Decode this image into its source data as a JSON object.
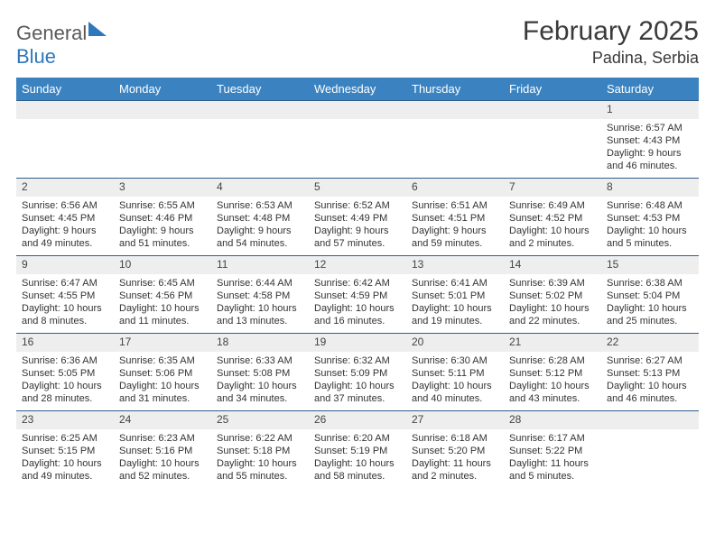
{
  "logo": {
    "general": "General",
    "blue": "Blue"
  },
  "title": {
    "month": "February 2025",
    "location": "Padina, Serbia"
  },
  "palette": {
    "header_bg": "#3b83c0",
    "header_text": "#ffffff",
    "daynum_bg": "#eeeeee",
    "rule_color": "#2f5e8a",
    "body_text": "#333333",
    "logo_gray": "#5a5a5a",
    "logo_blue": "#2f77bb"
  },
  "typography": {
    "title_fontsize": 30,
    "location_fontsize": 18,
    "dayhead_fontsize": 13,
    "cell_fontsize": 11
  },
  "dayheads": [
    "Sunday",
    "Monday",
    "Tuesday",
    "Wednesday",
    "Thursday",
    "Friday",
    "Saturday"
  ],
  "weeks": [
    [
      {
        "n": "",
        "sr": "",
        "ss": "",
        "dl": ""
      },
      {
        "n": "",
        "sr": "",
        "ss": "",
        "dl": ""
      },
      {
        "n": "",
        "sr": "",
        "ss": "",
        "dl": ""
      },
      {
        "n": "",
        "sr": "",
        "ss": "",
        "dl": ""
      },
      {
        "n": "",
        "sr": "",
        "ss": "",
        "dl": ""
      },
      {
        "n": "",
        "sr": "",
        "ss": "",
        "dl": ""
      },
      {
        "n": "1",
        "sr": "Sunrise: 6:57 AM",
        "ss": "Sunset: 4:43 PM",
        "dl": "Daylight: 9 hours and 46 minutes."
      }
    ],
    [
      {
        "n": "2",
        "sr": "Sunrise: 6:56 AM",
        "ss": "Sunset: 4:45 PM",
        "dl": "Daylight: 9 hours and 49 minutes."
      },
      {
        "n": "3",
        "sr": "Sunrise: 6:55 AM",
        "ss": "Sunset: 4:46 PM",
        "dl": "Daylight: 9 hours and 51 minutes."
      },
      {
        "n": "4",
        "sr": "Sunrise: 6:53 AM",
        "ss": "Sunset: 4:48 PM",
        "dl": "Daylight: 9 hours and 54 minutes."
      },
      {
        "n": "5",
        "sr": "Sunrise: 6:52 AM",
        "ss": "Sunset: 4:49 PM",
        "dl": "Daylight: 9 hours and 57 minutes."
      },
      {
        "n": "6",
        "sr": "Sunrise: 6:51 AM",
        "ss": "Sunset: 4:51 PM",
        "dl": "Daylight: 9 hours and 59 minutes."
      },
      {
        "n": "7",
        "sr": "Sunrise: 6:49 AM",
        "ss": "Sunset: 4:52 PM",
        "dl": "Daylight: 10 hours and 2 minutes."
      },
      {
        "n": "8",
        "sr": "Sunrise: 6:48 AM",
        "ss": "Sunset: 4:53 PM",
        "dl": "Daylight: 10 hours and 5 minutes."
      }
    ],
    [
      {
        "n": "9",
        "sr": "Sunrise: 6:47 AM",
        "ss": "Sunset: 4:55 PM",
        "dl": "Daylight: 10 hours and 8 minutes."
      },
      {
        "n": "10",
        "sr": "Sunrise: 6:45 AM",
        "ss": "Sunset: 4:56 PM",
        "dl": "Daylight: 10 hours and 11 minutes."
      },
      {
        "n": "11",
        "sr": "Sunrise: 6:44 AM",
        "ss": "Sunset: 4:58 PM",
        "dl": "Daylight: 10 hours and 13 minutes."
      },
      {
        "n": "12",
        "sr": "Sunrise: 6:42 AM",
        "ss": "Sunset: 4:59 PM",
        "dl": "Daylight: 10 hours and 16 minutes."
      },
      {
        "n": "13",
        "sr": "Sunrise: 6:41 AM",
        "ss": "Sunset: 5:01 PM",
        "dl": "Daylight: 10 hours and 19 minutes."
      },
      {
        "n": "14",
        "sr": "Sunrise: 6:39 AM",
        "ss": "Sunset: 5:02 PM",
        "dl": "Daylight: 10 hours and 22 minutes."
      },
      {
        "n": "15",
        "sr": "Sunrise: 6:38 AM",
        "ss": "Sunset: 5:04 PM",
        "dl": "Daylight: 10 hours and 25 minutes."
      }
    ],
    [
      {
        "n": "16",
        "sr": "Sunrise: 6:36 AM",
        "ss": "Sunset: 5:05 PM",
        "dl": "Daylight: 10 hours and 28 minutes."
      },
      {
        "n": "17",
        "sr": "Sunrise: 6:35 AM",
        "ss": "Sunset: 5:06 PM",
        "dl": "Daylight: 10 hours and 31 minutes."
      },
      {
        "n": "18",
        "sr": "Sunrise: 6:33 AM",
        "ss": "Sunset: 5:08 PM",
        "dl": "Daylight: 10 hours and 34 minutes."
      },
      {
        "n": "19",
        "sr": "Sunrise: 6:32 AM",
        "ss": "Sunset: 5:09 PM",
        "dl": "Daylight: 10 hours and 37 minutes."
      },
      {
        "n": "20",
        "sr": "Sunrise: 6:30 AM",
        "ss": "Sunset: 5:11 PM",
        "dl": "Daylight: 10 hours and 40 minutes."
      },
      {
        "n": "21",
        "sr": "Sunrise: 6:28 AM",
        "ss": "Sunset: 5:12 PM",
        "dl": "Daylight: 10 hours and 43 minutes."
      },
      {
        "n": "22",
        "sr": "Sunrise: 6:27 AM",
        "ss": "Sunset: 5:13 PM",
        "dl": "Daylight: 10 hours and 46 minutes."
      }
    ],
    [
      {
        "n": "23",
        "sr": "Sunrise: 6:25 AM",
        "ss": "Sunset: 5:15 PM",
        "dl": "Daylight: 10 hours and 49 minutes."
      },
      {
        "n": "24",
        "sr": "Sunrise: 6:23 AM",
        "ss": "Sunset: 5:16 PM",
        "dl": "Daylight: 10 hours and 52 minutes."
      },
      {
        "n": "25",
        "sr": "Sunrise: 6:22 AM",
        "ss": "Sunset: 5:18 PM",
        "dl": "Daylight: 10 hours and 55 minutes."
      },
      {
        "n": "26",
        "sr": "Sunrise: 6:20 AM",
        "ss": "Sunset: 5:19 PM",
        "dl": "Daylight: 10 hours and 58 minutes."
      },
      {
        "n": "27",
        "sr": "Sunrise: 6:18 AM",
        "ss": "Sunset: 5:20 PM",
        "dl": "Daylight: 11 hours and 2 minutes."
      },
      {
        "n": "28",
        "sr": "Sunrise: 6:17 AM",
        "ss": "Sunset: 5:22 PM",
        "dl": "Daylight: 11 hours and 5 minutes."
      },
      {
        "n": "",
        "sr": "",
        "ss": "",
        "dl": ""
      }
    ]
  ]
}
